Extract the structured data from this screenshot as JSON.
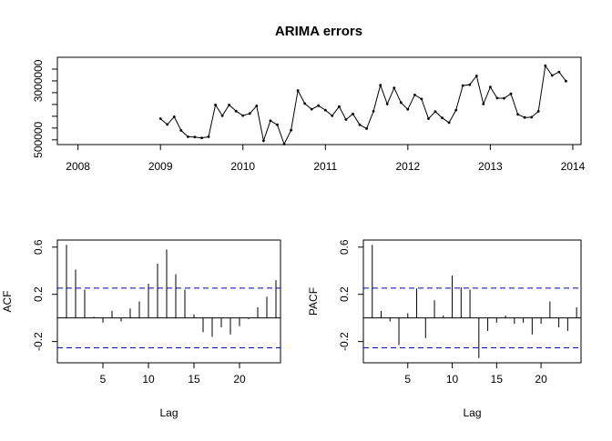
{
  "title": "ARIMA errors",
  "chart_data": [
    {
      "type": "line",
      "title": "ARIMA errors",
      "xlabel": "",
      "ylabel": "",
      "xlim": [
        2007.75,
        2014.1
      ],
      "ylim": [
        300000,
        4000000
      ],
      "x_ticks": [
        2008,
        2009,
        2010,
        2011,
        2012,
        2013,
        2014
      ],
      "x_tick_labels": [
        "2008",
        "2009",
        "2010",
        "2011",
        "2012",
        "2013",
        "2014"
      ],
      "y_ticks": [
        500000,
        1000000,
        1500000,
        2000000,
        2500000,
        3000000,
        3500000
      ],
      "y_tick_labels": [
        "500000",
        "",
        "",
        "",
        "",
        "3000000",
        ""
      ],
      "start": 2009.0,
      "frequency": 12,
      "values": [
        1400000,
        1150000,
        1480000,
        900000,
        630000,
        620000,
        580000,
        630000,
        1980000,
        1520000,
        1980000,
        1720000,
        1530000,
        1620000,
        1940000,
        460000,
        1310000,
        1140000,
        320000,
        910000,
        2590000,
        2040000,
        1800000,
        1950000,
        1760000,
        1520000,
        1910000,
        1360000,
        1600000,
        1140000,
        980000,
        1710000,
        2820000,
        2020000,
        2700000,
        2080000,
        1790000,
        2410000,
        2230000,
        1400000,
        1700000,
        1430000,
        1230000,
        1760000,
        2800000,
        2840000,
        3210000,
        2020000,
        2740000,
        2270000,
        2260000,
        2450000,
        1580000,
        1450000,
        1460000,
        1710000,
        3640000,
        3230000,
        3380000,
        2990000
      ]
    },
    {
      "type": "bar",
      "ylabel": "ACF",
      "xlabel": "Lag",
      "xlim": [
        0,
        24.5
      ],
      "ylim": [
        -0.38,
        0.66
      ],
      "x_ticks": [
        5,
        10,
        15,
        20
      ],
      "y_ticks": [
        -0.2,
        0.2,
        0.6
      ],
      "y_tick_labels": [
        "-0.2",
        "0.2",
        "0.6"
      ],
      "ci": 0.253,
      "lags": [
        1,
        2,
        3,
        4,
        5,
        6,
        7,
        8,
        9,
        10,
        11,
        12,
        13,
        14,
        15,
        16,
        17,
        18,
        19,
        20,
        21,
        22,
        23,
        24
      ],
      "values": [
        0.62,
        0.41,
        0.24,
        0.01,
        -0.04,
        0.06,
        -0.03,
        0.08,
        0.14,
        0.29,
        0.46,
        0.58,
        0.37,
        0.24,
        0.03,
        -0.12,
        -0.16,
        -0.08,
        -0.14,
        -0.07,
        -0.01,
        0.09,
        0.18,
        0.32
      ]
    },
    {
      "type": "bar",
      "ylabel": "PACF",
      "xlabel": "Lag",
      "xlim": [
        0,
        24.5
      ],
      "ylim": [
        -0.38,
        0.66
      ],
      "x_ticks": [
        5,
        10,
        15,
        20
      ],
      "y_ticks": [
        -0.2,
        0.2,
        0.6
      ],
      "y_tick_labels": [
        "-0.2",
        "0.2",
        "0.6"
      ],
      "ci": 0.253,
      "lags": [
        1,
        2,
        3,
        4,
        5,
        6,
        7,
        8,
        9,
        10,
        11,
        12,
        13,
        14,
        15,
        16,
        17,
        18,
        19,
        20,
        21,
        22,
        23,
        24
      ],
      "values": [
        0.62,
        0.06,
        -0.03,
        -0.23,
        0.04,
        0.25,
        -0.17,
        0.15,
        0.02,
        0.36,
        0.26,
        0.24,
        -0.34,
        -0.11,
        -0.04,
        0.02,
        -0.05,
        -0.04,
        -0.14,
        -0.05,
        0.14,
        -0.08,
        -0.11,
        0.09
      ]
    }
  ]
}
